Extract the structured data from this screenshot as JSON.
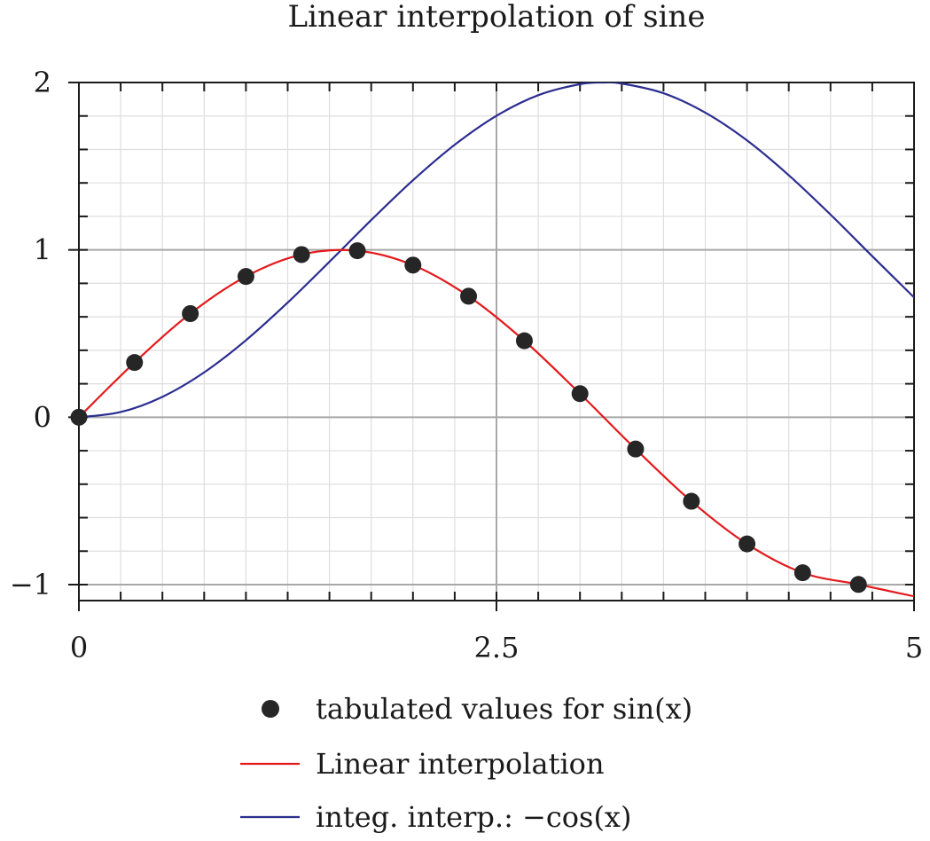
{
  "chart_data": {
    "type": "line",
    "title": "Linear interpolation of sine",
    "xlabel": "",
    "ylabel": "",
    "xlim": [
      0,
      5
    ],
    "ylim": [
      -1.1,
      2
    ],
    "x_ticks": [
      {
        "value": 0,
        "label": "0"
      },
      {
        "value": 2.5,
        "label": "2.5"
      },
      {
        "value": 5,
        "label": "5"
      }
    ],
    "y_ticks": [
      {
        "value": -1,
        "label": "−1"
      },
      {
        "value": 0,
        "label": "0"
      },
      {
        "value": 1,
        "label": "1"
      },
      {
        "value": 2,
        "label": "2"
      }
    ],
    "grid": true,
    "legend_position": "bottom",
    "series": [
      {
        "name": "tabulated values for sin(x)",
        "type": "scatter",
        "color": "#262626",
        "x": [
          0,
          0.333,
          0.667,
          1.0,
          1.333,
          1.667,
          2.0,
          2.333,
          2.667,
          3.0,
          3.333,
          3.667,
          4.0,
          4.333,
          4.667
        ],
        "y": [
          0,
          0.327,
          0.619,
          0.841,
          0.972,
          0.995,
          0.909,
          0.723,
          0.457,
          0.141,
          -0.19,
          -0.502,
          -0.757,
          -0.929,
          -0.999
        ]
      },
      {
        "name": "Linear interpolation",
        "type": "line",
        "color": "#e31a1c",
        "x": [
          0,
          0.333,
          0.667,
          1.0,
          1.333,
          1.667,
          2.0,
          2.333,
          2.667,
          3.0,
          3.333,
          3.667,
          4.0,
          4.333,
          4.667,
          5.0
        ],
        "y": [
          0,
          0.327,
          0.619,
          0.841,
          0.972,
          0.995,
          0.909,
          0.723,
          0.457,
          0.141,
          -0.19,
          -0.502,
          -0.757,
          -0.929,
          -0.999,
          -1.07
        ]
      },
      {
        "name": "integ. interp.: −cos(x)",
        "type": "line",
        "color": "#2b2d8f",
        "x": [
          0,
          0.25,
          0.5,
          0.75,
          1.0,
          1.25,
          1.5,
          1.75,
          2.0,
          2.25,
          2.5,
          2.75,
          3.0,
          3.14,
          3.25,
          3.5,
          3.75,
          4.0,
          4.25,
          4.5,
          4.75,
          5.0
        ],
        "y": [
          0,
          0.031,
          0.122,
          0.268,
          0.46,
          0.685,
          0.929,
          1.178,
          1.416,
          1.628,
          1.801,
          1.924,
          1.99,
          2.0,
          1.994,
          1.936,
          1.82,
          1.654,
          1.446,
          1.211,
          0.962,
          0.716
        ]
      }
    ]
  }
}
